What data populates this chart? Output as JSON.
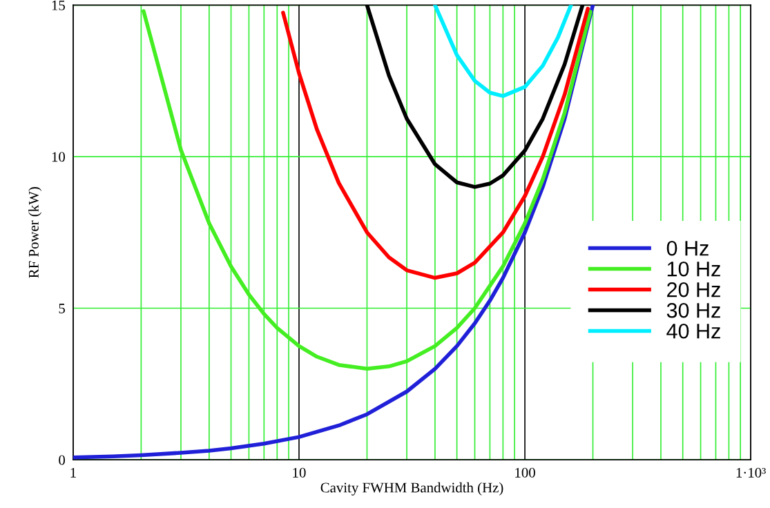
{
  "chart_data": {
    "type": "line",
    "xlabel": "Cavity FWHM Bandwidth (Hz)",
    "ylabel": "RF Power (kW)",
    "log": "x",
    "xlim": [
      1,
      1000
    ],
    "xticks": [
      1,
      10,
      100,
      {
        "value": 1000,
        "label": "1·10³"
      }
    ],
    "ylim": [
      0,
      15
    ],
    "yticks": [
      0,
      5,
      10,
      15
    ],
    "grid": true,
    "legend": "right",
    "marker": "none",
    "line_style": "solid",
    "series": [
      {
        "name": "0 Hz",
        "color": "#2020d8",
        "x": [
          1,
          1.5,
          2,
          3,
          4,
          5,
          7,
          10,
          15,
          20,
          30,
          40,
          50,
          60,
          70,
          80,
          100,
          120,
          150,
          200
        ],
        "values": [
          0.075,
          0.11,
          0.15,
          0.23,
          0.3,
          0.38,
          0.53,
          0.75,
          1.13,
          1.5,
          2.25,
          3.0,
          3.75,
          4.5,
          5.25,
          6.0,
          7.5,
          9.0,
          11.25,
          15.0
        ]
      },
      {
        "name": "10 Hz",
        "color": "#44ee22",
        "x": [
          2.05,
          3,
          4,
          5,
          6,
          7,
          8,
          10,
          12,
          15,
          20,
          25,
          30,
          40,
          50,
          60,
          80,
          100,
          120,
          150,
          195
        ],
        "values": [
          14.8,
          10.22,
          7.8,
          6.38,
          5.45,
          4.81,
          4.35,
          3.75,
          3.4,
          3.13,
          3.0,
          3.08,
          3.25,
          3.75,
          4.35,
          5.0,
          6.38,
          7.8,
          9.25,
          11.45,
          14.78
        ]
      },
      {
        "name": "20 Hz",
        "color": "#ff0000",
        "x": [
          8.5,
          10,
          12,
          15,
          20,
          25,
          30,
          40,
          50,
          60,
          80,
          100,
          120,
          150,
          190
        ],
        "values": [
          14.75,
          12.75,
          10.9,
          9.13,
          7.5,
          6.68,
          6.25,
          6.0,
          6.15,
          6.5,
          7.5,
          8.7,
          10.0,
          12.05,
          14.88
        ]
      },
      {
        "name": "30 Hz",
        "color": "#000000",
        "x": [
          20,
          25,
          30,
          40,
          50,
          60,
          70,
          80,
          100,
          120,
          150,
          180
        ],
        "values": [
          15.0,
          12.68,
          11.25,
          9.75,
          9.15,
          9.0,
          9.11,
          9.38,
          10.2,
          11.25,
          13.05,
          15.0
        ]
      },
      {
        "name": "40 Hz",
        "color": "#00eeff",
        "x": [
          40,
          50,
          60,
          70,
          80,
          100,
          120,
          140,
          160
        ],
        "values": [
          15.0,
          13.35,
          12.5,
          12.11,
          12.0,
          12.3,
          13.0,
          13.93,
          15.0
        ]
      }
    ]
  }
}
